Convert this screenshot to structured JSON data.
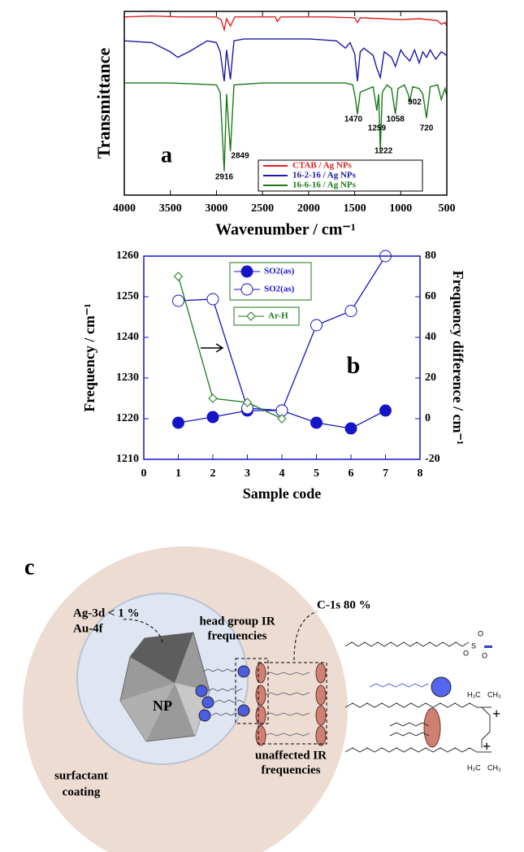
{
  "chart_data": [
    {
      "type": "line",
      "panel_label": "a",
      "x_label": "Wavenumber / cm⁻¹",
      "y_label": "Transmittance",
      "xlim": [
        4000,
        500
      ],
      "xticks": [
        4000,
        3500,
        3000,
        2500,
        2000,
        1500,
        1000,
        500
      ],
      "ylim": [
        0,
        10
      ],
      "peak_labels": [
        2916,
        2849,
        1470,
        1259,
        1222,
        1058,
        902,
        720
      ],
      "legend": "bottom-right",
      "series": [
        {
          "name": "CTAB / Ag NPs",
          "color": "#e02020",
          "x": [
            4000,
            3700,
            3400,
            3000,
            2950,
            2916,
            2890,
            2849,
            2800,
            2360,
            2340,
            2300,
            1800,
            1500,
            1470,
            1440,
            1200,
            1000,
            800,
            600,
            560,
            520,
            500
          ],
          "values": [
            9.7,
            9.75,
            9.7,
            9.7,
            9.55,
            9.0,
            9.6,
            9.2,
            9.7,
            9.7,
            9.45,
            9.7,
            9.7,
            9.65,
            9.4,
            9.65,
            9.6,
            9.55,
            9.6,
            9.5,
            9.3,
            9.4,
            9.2
          ]
        },
        {
          "name": "16-2-16 / Ag NPs",
          "color": "#1a1aa8",
          "x": [
            4000,
            3700,
            3500,
            3420,
            3300,
            3100,
            3000,
            2960,
            2916,
            2890,
            2849,
            2810,
            2700,
            2400,
            2000,
            1700,
            1600,
            1550,
            1500,
            1470,
            1440,
            1400,
            1300,
            1259,
            1222,
            1180,
            1100,
            1058,
            1000,
            960,
            902,
            850,
            800,
            760,
            720,
            680,
            620,
            560,
            500
          ],
          "values": [
            8.4,
            8.3,
            7.8,
            7.5,
            7.8,
            8.4,
            8.3,
            7.8,
            6.2,
            7.9,
            6.3,
            8.4,
            8.5,
            8.5,
            8.5,
            8.4,
            8.0,
            8.3,
            7.7,
            6.2,
            7.8,
            8.0,
            7.6,
            6.9,
            6.4,
            7.8,
            7.5,
            7.0,
            7.9,
            7.6,
            7.3,
            7.9,
            7.2,
            7.8,
            7.5,
            7.9,
            7.4,
            7.8,
            7.6
          ]
        },
        {
          "name": "16-6-16 / Ag NPs",
          "color": "#1a7a1a",
          "x": [
            4000,
            3500,
            3000,
            2960,
            2916,
            2890,
            2849,
            2810,
            2500,
            2000,
            1600,
            1520,
            1490,
            1470,
            1440,
            1300,
            1259,
            1240,
            1222,
            1200,
            1150,
            1100,
            1058,
            1030,
            960,
            920,
            902,
            870,
            800,
            760,
            720,
            680,
            600,
            560,
            520,
            500
          ],
          "values": [
            6.1,
            6.1,
            6.0,
            5.6,
            1.3,
            5.5,
            2.4,
            6.0,
            6.1,
            6.1,
            6.1,
            6.0,
            5.2,
            4.4,
            5.6,
            5.9,
            4.6,
            5.5,
            2.4,
            5.6,
            6.0,
            5.8,
            4.4,
            5.8,
            6.0,
            5.5,
            5.1,
            5.9,
            5.8,
            5.5,
            4.2,
            5.9,
            6.0,
            5.2,
            5.8,
            5.4
          ]
        }
      ]
    },
    {
      "type": "line",
      "panel_label": "b",
      "x_label": "Sample code",
      "y_label": "Frequency / cm⁻¹",
      "y2_label": "Frequency difference / cm⁻¹",
      "x": [
        1,
        2,
        3,
        4,
        5,
        6,
        7
      ],
      "xlim": [
        0,
        8
      ],
      "xticks": [
        0,
        1,
        2,
        3,
        4,
        5,
        6,
        7,
        8
      ],
      "ylim": [
        1210,
        1260
      ],
      "yticks": [
        1210,
        1220,
        1230,
        1240,
        1250,
        1260
      ],
      "y2lim": [
        -20,
        80
      ],
      "y2ticks": [
        -20,
        0,
        20,
        40,
        60,
        80
      ],
      "series": [
        {
          "name": "SO2(as)",
          "color": "#1515c8",
          "marker": "filled-circle",
          "values": [
            1219,
            1220.4,
            1222,
            1222,
            1219,
            1217.6,
            1222
          ]
        },
        {
          "name": "SO2(as)",
          "color": "#1515c8",
          "marker": "open-circle",
          "axis": "y2",
          "values": [
            58,
            58.8,
            5.2,
            4,
            46,
            53,
            80
          ]
        },
        {
          "name": "Ar-H",
          "color": "#1a7a1a",
          "marker": "open-diamond",
          "axis": "y2",
          "values": [
            70,
            10,
            8,
            0,
            null,
            null,
            null
          ]
        }
      ]
    }
  ],
  "diagram": {
    "panel_label": "c",
    "np": "NP",
    "xps_left": [
      "Ag-3d  < 1 %",
      "Au-4f"
    ],
    "xps_right": "C-1s 80 %",
    "head_group": [
      "head group IR",
      "frequencies"
    ],
    "unaffected": [
      "unaffected IR",
      "frequencies"
    ],
    "coating": [
      "surfactant",
      "coating"
    ],
    "chem": [
      "O",
      "S",
      "O",
      "O",
      "H₃C",
      "CH₃",
      "+",
      "H₃C",
      "CH₃",
      "+"
    ]
  }
}
